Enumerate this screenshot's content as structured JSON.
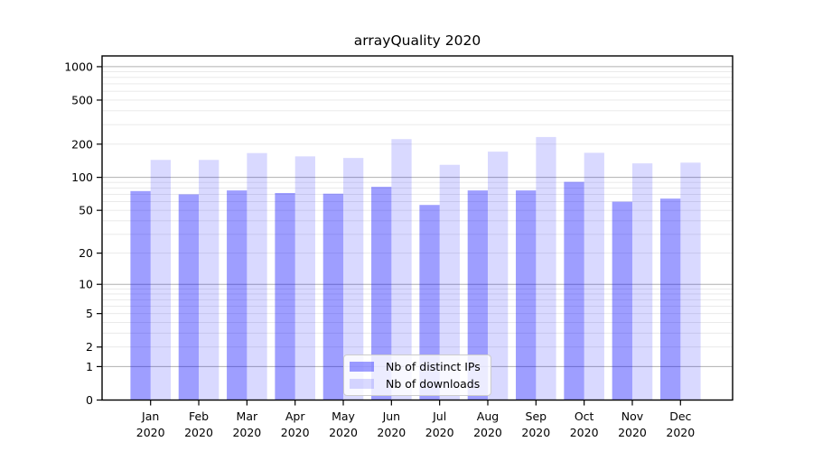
{
  "title": "arrayQuality 2020",
  "colors": {
    "series_ips": "rgba(0,0,255,0.38)",
    "series_downloads": "rgba(0,0,255,0.15)",
    "grid_major": "#b0b0b0",
    "grid_minor": "#e7e7e7",
    "spine": "#000000",
    "tick_text": "#000000",
    "background": "#ffffff"
  },
  "chart_data": {
    "type": "bar",
    "title": "arrayQuality 2020",
    "xlabel": "",
    "ylabel": "",
    "yscale": "log1p",
    "ylim": [
      0,
      1250
    ],
    "grid": true,
    "legend_position": "lower center",
    "categories": [
      "Jan",
      "Feb",
      "Mar",
      "Apr",
      "May",
      "Jun",
      "Jul",
      "Aug",
      "Sep",
      "Oct",
      "Nov",
      "Dec"
    ],
    "x_year": "2020",
    "yticks": [
      0,
      1,
      2,
      5,
      10,
      20,
      50,
      100,
      200,
      500,
      1000
    ],
    "major_gridlines": [
      1,
      10,
      100,
      1000
    ],
    "minor_gridlines": [
      2,
      3,
      4,
      5,
      6,
      7,
      8,
      9,
      20,
      30,
      40,
      50,
      60,
      70,
      80,
      90,
      200,
      300,
      400,
      500,
      600,
      700,
      800,
      900
    ],
    "series": [
      {
        "name": "Nb of distinct IPs",
        "color": "rgba(0,0,255,0.38)",
        "values": [
          75,
          70,
          76,
          72,
          71,
          82,
          56,
          76,
          76,
          91,
          60,
          64
        ]
      },
      {
        "name": "Nb of downloads",
        "color": "rgba(0,0,255,0.15)",
        "values": [
          144,
          144,
          166,
          155,
          150,
          222,
          130,
          171,
          232,
          167,
          134,
          136
        ]
      }
    ]
  }
}
